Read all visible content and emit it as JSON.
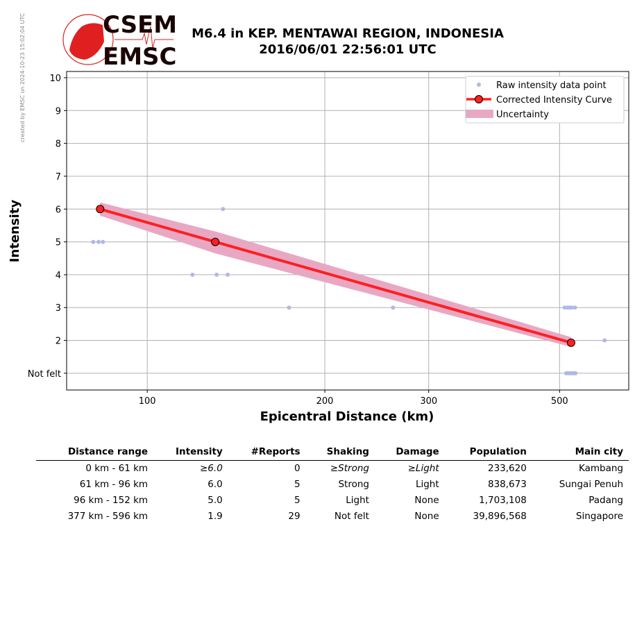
{
  "watermark": "created by EMSC on 2024-10-23 15:02:04 UTC",
  "logo": {
    "line1": "CSEM",
    "line2": "EMSC"
  },
  "title": {
    "line1": "M6.4 in KEP. MENTAWAI REGION, INDONESIA",
    "line2": "2016/06/01 22:56:01 UTC"
  },
  "colors": {
    "raw": "#b0b8e8",
    "curve": "#ff2020",
    "band": "#e8a8c4",
    "logo": "#e02020"
  },
  "chart_data": {
    "type": "scatter",
    "xlabel": "Epicentral Distance (km)",
    "ylabel": "Intensity",
    "xscale": "log",
    "xlim": [
      73,
      655
    ],
    "ylim": [
      0.49,
      10.19
    ],
    "xticks": [
      100,
      200,
      300,
      500
    ],
    "xtick_labels": [
      "100",
      "200",
      "300",
      "500"
    ],
    "yticks": [
      1,
      2,
      3,
      4,
      5,
      6,
      7,
      8,
      9,
      10
    ],
    "ytick_labels": [
      "Not felt",
      "2",
      "3",
      "4",
      "5",
      "6",
      "7",
      "8",
      "9",
      "10"
    ],
    "grid": true,
    "legend_position": "top-right",
    "legend": [
      "Raw intensity data point",
      "Corrected Intensity Curve",
      "Uncertainty"
    ],
    "raw_points": [
      [
        81,
        5
      ],
      [
        82.7,
        5
      ],
      [
        84.1,
        5
      ],
      [
        83.5,
        6
      ],
      [
        134.4,
        6
      ],
      [
        119.3,
        4
      ],
      [
        131.1,
        4
      ],
      [
        136.9,
        4
      ],
      [
        173.9,
        3
      ],
      [
        261,
        3
      ],
      [
        510,
        3
      ],
      [
        516,
        3
      ],
      [
        520,
        3
      ],
      [
        524,
        3
      ],
      [
        531,
        3
      ],
      [
        596,
        2
      ],
      [
        513,
        1
      ],
      [
        517,
        1
      ],
      [
        521,
        1
      ],
      [
        525,
        1
      ],
      [
        529,
        1
      ],
      [
        532,
        1
      ]
    ],
    "curve": [
      [
        83.2,
        6.0
      ],
      [
        130.4,
        5.0
      ],
      [
        523,
        1.93
      ]
    ],
    "uncertainty": {
      "x": [
        83.2,
        130.4,
        523
      ],
      "lower": [
        5.8,
        4.65,
        1.8
      ],
      "upper": [
        6.2,
        5.32,
        2.1
      ]
    }
  },
  "table": {
    "headers": [
      "Distance range",
      "Intensity",
      "#Reports",
      "Shaking",
      "Damage",
      "Population",
      "Main city"
    ],
    "rows": [
      [
        "0 km -   61 km",
        "≥6.0",
        "0",
        "≥Strong",
        "≥Light",
        "233,620",
        "Kambang"
      ],
      [
        "61 km -   96 km",
        "6.0",
        "5",
        "Strong",
        "Light",
        "838,673",
        "Sungai Penuh"
      ],
      [
        "96 km -  152 km",
        "5.0",
        "5",
        "Light",
        "None",
        "1,703,108",
        "Padang"
      ],
      [
        "377 km -  596 km",
        "1.9",
        "29",
        "Not felt",
        "None",
        "39,896,568",
        "Singapore"
      ]
    ]
  }
}
